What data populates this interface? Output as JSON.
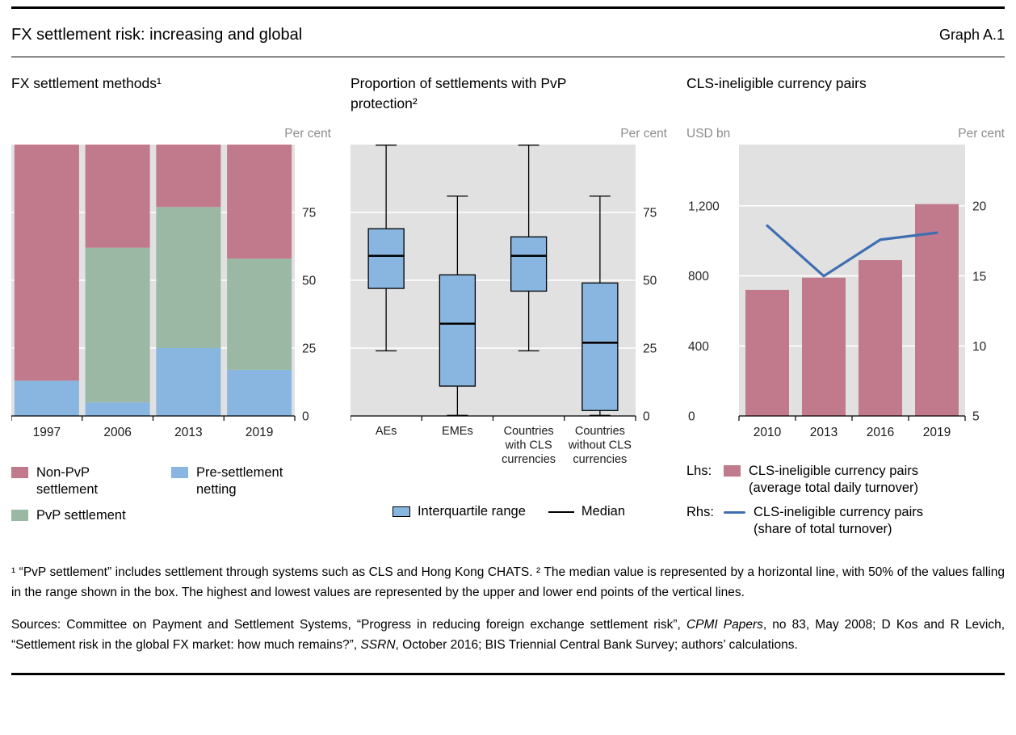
{
  "header": {
    "title": "FX settlement risk: increasing and global",
    "graph_label": "Graph A.1"
  },
  "colors": {
    "rose": "#c07a8b",
    "green": "#9ab8a3",
    "blue": "#88b6e0",
    "line_blue": "#3f6fb2",
    "plot_bg": "#e1e1e1",
    "grid": "#ffffff",
    "unit_text": "#8c8c8c",
    "axis_text": "#262626"
  },
  "chart_data": [
    {
      "type": "bar",
      "stacked": true,
      "title": "FX settlement methods¹",
      "unit_right": "Per cent",
      "categories": [
        "1997",
        "2006",
        "2013",
        "2019"
      ],
      "series": [
        {
          "name": "Pre-settlement netting",
          "color": "#88b6e0",
          "values": [
            13,
            5,
            25,
            17
          ]
        },
        {
          "name": "PvP settlement",
          "color": "#9ab8a3",
          "values": [
            0,
            57,
            52,
            41
          ]
        },
        {
          "name": "Non-PvP settlement",
          "color": "#c07a8b",
          "values": [
            87,
            38,
            23,
            42
          ]
        }
      ],
      "ylim": [
        0,
        100
      ],
      "yticks": [
        0,
        25,
        50,
        75
      ],
      "grid": true,
      "legend_columns": [
        [
          {
            "label": "Non-PvP\nsettlement",
            "color": "#c07a8b"
          },
          {
            "label": "PvP settlement",
            "color": "#9ab8a3"
          }
        ],
        [
          {
            "label": "Pre-settlement\nnetting",
            "color": "#88b6e0"
          }
        ]
      ]
    },
    {
      "type": "boxplot",
      "title": "Proportion of settlements with PvP\nprotection²",
      "unit_right": "Per cent",
      "categories": [
        "AEs",
        "EMEs",
        "Countries\nwith CLS\ncurrencies",
        "Countries\nwithout CLS\ncurrencies"
      ],
      "box_color": "#88b6e0",
      "boxes": [
        {
          "min": 24,
          "q1": 47,
          "median": 59,
          "q3": 69,
          "max": 100
        },
        {
          "min": 0,
          "q1": 11,
          "median": 34,
          "q3": 52,
          "max": 81
        },
        {
          "min": 24,
          "q1": 46,
          "median": 59,
          "q3": 66,
          "max": 100
        },
        {
          "min": 0,
          "q1": 2,
          "median": 27,
          "q3": 49,
          "max": 81
        }
      ],
      "ylim": [
        0,
        100
      ],
      "yticks": [
        0,
        25,
        50,
        75
      ],
      "grid": true,
      "legend": [
        {
          "swatch": "box",
          "label": "Interquartile range"
        },
        {
          "swatch": "median-line",
          "label": "Median"
        }
      ]
    },
    {
      "type": "bar-line",
      "title": "CLS-ineligible currency pairs",
      "unit_left": "USD bn",
      "unit_right": "Per cent",
      "categories": [
        "2010",
        "2013",
        "2016",
        "2019"
      ],
      "bars": {
        "name": "CLS-ineligible currency pairs (average total daily turnover)",
        "axis": "lhs",
        "color": "#c07a8b",
        "values": [
          720,
          790,
          890,
          1210
        ]
      },
      "line": {
        "name": "CLS-ineligible currency pairs (share of total turnover)",
        "axis": "rhs",
        "color": "#3f6fb2",
        "values": [
          18.6,
          15,
          17.6,
          18.1
        ]
      },
      "ylim_left": [
        0,
        1550
      ],
      "yticks_left": {
        "values": [
          0,
          400,
          800,
          1200
        ],
        "labels": [
          "0",
          "400",
          "800",
          "1,200"
        ]
      },
      "ylim_right": [
        5,
        24.4
      ],
      "yticks_right": {
        "values": [
          5,
          10,
          15,
          20
        ],
        "labels": [
          "5",
          "10",
          "15",
          "20"
        ]
      },
      "grid": true,
      "legend": [
        {
          "prefix": "Lhs:",
          "swatch": "bar",
          "label": "CLS-ineligible currency pairs\n(average total daily turnover)"
        },
        {
          "prefix": "Rhs:",
          "swatch": "line",
          "label": "CLS-ineligible currency pairs\n(share of total turnover)"
        }
      ]
    }
  ],
  "notes": {
    "footnotes": "¹ “PvP settlement” includes settlement through systems such as CLS and Hong Kong CHATS.  ² The median value is represented by a horizontal line, with 50% of the values falling in the range shown in the box. The highest and lowest values are represented by the upper and lower end points of the vertical lines.",
    "sources_segments": [
      {
        "text": "Sources: Committee on Payment and Settlement Systems, “Progress in reducing foreign exchange settlement risk”, "
      },
      {
        "text": "CPMI Papers",
        "italic": true
      },
      {
        "text": ", no 83, May 2008; D Kos and R Levich, “Settlement risk in the global FX market: how much remains?”, "
      },
      {
        "text": "SSRN",
        "italic": true
      },
      {
        "text": ", October 2016; BIS Triennial Central Bank Survey; authors’ calculations."
      }
    ]
  }
}
